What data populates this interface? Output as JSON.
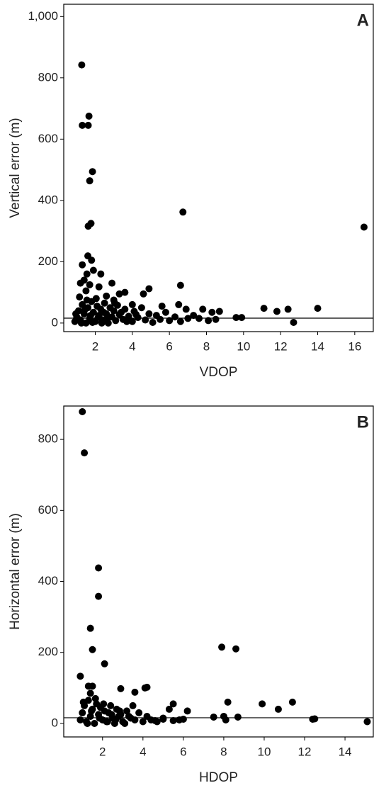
{
  "chart_data": [
    {
      "type": "scatter",
      "panel_label": "A",
      "x_label": "VDOP",
      "y_label": "Vertical error (m)",
      "color": "#000000",
      "xlim": [
        0.3,
        17
      ],
      "ylim": [
        -28,
        1040
      ],
      "xticks": [
        2,
        4,
        6,
        8,
        10,
        12,
        14,
        16
      ],
      "yticks": [
        0,
        200,
        400,
        600,
        800,
        {
          "value": 1000,
          "label": "1,000"
        }
      ],
      "reference_line": 16,
      "x": [
        1.27,
        1.3,
        1.66,
        1.62,
        1.85,
        1.7,
        1.77,
        1.62,
        6.73,
        16.5,
        1.6,
        1.8,
        1.3,
        1.55,
        1.9,
        2.3,
        1.4,
        1.2,
        1.7,
        2.2,
        2.9,
        3.3,
        3.6,
        4.9,
        4.6,
        6.6,
        1.5,
        2.6,
        3.0,
        4.0,
        5.6,
        6.5,
        6.9,
        7.8,
        8.3,
        8.7,
        9.6,
        9.9,
        11.1,
        11.8,
        12.4,
        12.7,
        14.0,
        7.3,
        8.1,
        8.5,
        7.6,
        0.9,
        1.0,
        1.1,
        1.2,
        1.3,
        1.4,
        1.5,
        1.6,
        1.7,
        1.8,
        1.9,
        2.0,
        2.1,
        2.2,
        2.3,
        2.4,
        2.5,
        2.6,
        2.7,
        2.8,
        2.9,
        3.0,
        3.1,
        3.2,
        3.3,
        3.5,
        3.6,
        3.8,
        4.0,
        4.1,
        4.3,
        4.5,
        4.7,
        4.9,
        5.1,
        5.3,
        5.5,
        5.8,
        6.0,
        6.3,
        6.6,
        7.0,
        1.25,
        1.45,
        1.75,
        2.05,
        2.35,
        2.65,
        3.05,
        3.4,
        1.15,
        1.55,
        2.45,
        3.7,
        4.2,
        1.85,
        2.15,
        0.95
      ],
      "values": [
        842,
        645,
        675,
        645,
        494,
        464,
        325,
        316,
        362,
        313,
        219,
        205,
        190,
        160,
        172,
        160,
        140,
        130,
        125,
        118,
        130,
        95,
        100,
        112,
        95,
        123,
        105,
        88,
        75,
        60,
        55,
        60,
        45,
        45,
        35,
        38,
        18,
        18,
        48,
        38,
        45,
        2,
        48,
        25,
        8,
        12,
        15,
        5,
        20,
        40,
        10,
        60,
        30,
        0,
        50,
        15,
        70,
        35,
        5,
        55,
        25,
        45,
        10,
        65,
        30,
        0,
        50,
        20,
        40,
        8,
        58,
        28,
        12,
        45,
        22,
        5,
        38,
        18,
        50,
        10,
        30,
        2,
        25,
        12,
        35,
        8,
        20,
        5,
        15,
        0,
        45,
        25,
        80,
        0,
        15,
        65,
        35,
        85,
        75,
        35,
        5,
        28,
        2,
        18,
        30
      ]
    },
    {
      "type": "scatter",
      "panel_label": "B",
      "x_label": "HDOP",
      "y_label": "Horizontal error (m)",
      "color": "#000000",
      "xlim": [
        0.08,
        15.4
      ],
      "ylim": [
        -38,
        894
      ],
      "xticks": [
        2,
        4,
        6,
        8,
        10,
        12,
        14
      ],
      "yticks": [
        0,
        200,
        400,
        600,
        800
      ],
      "reference_line": 16,
      "x": [
        1.0,
        1.1,
        1.8,
        1.8,
        1.4,
        1.5,
        2.1,
        0.9,
        7.9,
        8.6,
        9.9,
        10.7,
        11.4,
        12.4,
        15.1,
        8.2,
        5.5,
        6.2,
        4.1,
        4.2,
        3.6,
        2.9,
        1.3,
        1.5,
        1.4,
        3.5,
        5.3,
        7.5,
        8.0,
        8.7,
        8.1,
        12.5,
        5.0,
        5.8,
        4.6,
        0.9,
        1.0,
        1.1,
        1.2,
        1.3,
        1.4,
        1.5,
        1.6,
        1.7,
        1.8,
        1.9,
        2.0,
        2.1,
        2.2,
        2.3,
        2.4,
        2.5,
        2.6,
        2.7,
        2.8,
        2.9,
        3.0,
        3.2,
        3.4,
        3.6,
        3.8,
        4.0,
        4.2,
        4.4,
        4.7,
        5.0,
        5.5,
        6.0,
        1.05,
        1.25,
        1.45,
        1.65,
        1.85,
        2.05,
        2.25,
        2.45,
        2.65,
        2.85,
        3.1,
        3.3
      ],
      "values": [
        878,
        762,
        438,
        358,
        268,
        208,
        168,
        133,
        215,
        210,
        55,
        40,
        60,
        12,
        5,
        60,
        55,
        35,
        100,
        102,
        88,
        98,
        105,
        105,
        85,
        50,
        40,
        18,
        20,
        18,
        10,
        13,
        12,
        10,
        8,
        10,
        30,
        50,
        5,
        65,
        20,
        40,
        0,
        55,
        25,
        45,
        10,
        35,
        5,
        30,
        50,
        15,
        0,
        40,
        20,
        25,
        5,
        35,
        15,
        10,
        30,
        5,
        20,
        10,
        5,
        15,
        8,
        12,
        60,
        0,
        35,
        70,
        15,
        55,
        5,
        25,
        10,
        35,
        0,
        20
      ]
    }
  ]
}
